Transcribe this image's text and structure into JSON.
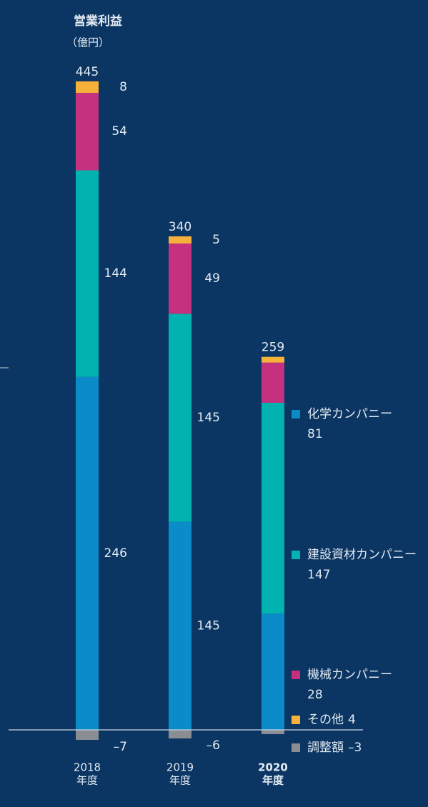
{
  "chart_data": {
    "type": "stacked-bar",
    "title": "営業利益",
    "unit": "（億円）",
    "categories": [
      [
        "2018",
        "年度"
      ],
      [
        "2019",
        "年度"
      ],
      [
        "2020",
        "年度"
      ]
    ],
    "totals": [
      445,
      340,
      259
    ],
    "series": [
      {
        "name": "化学カンパニー",
        "color": "#0b8bc7",
        "values": [
          246,
          145,
          81
        ]
      },
      {
        "name": "建設資材カンパニー",
        "color": "#00b3b0",
        "values": [
          144,
          145,
          147
        ]
      },
      {
        "name": "機械カンパニー",
        "color": "#c5307f",
        "values": [
          54,
          49,
          28
        ]
      },
      {
        "name": "その他",
        "color": "#f6b13a",
        "values": [
          8,
          5,
          4
        ]
      },
      {
        "name": "調整額",
        "color": "#8a8d92",
        "values": [
          -7,
          -6,
          -3
        ],
        "value_labels": [
          "–7",
          "–6",
          "–3"
        ]
      }
    ]
  }
}
